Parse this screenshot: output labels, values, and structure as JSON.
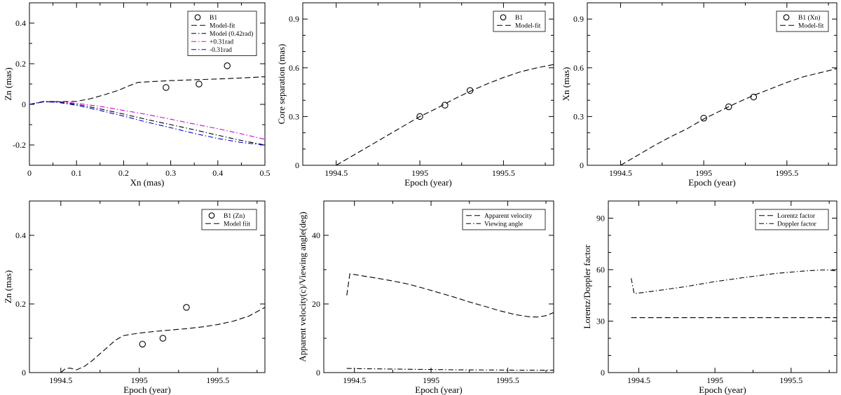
{
  "chart_data": [
    {
      "id": "p1",
      "type": "line",
      "xlabel": "Xn (mas)",
      "ylabel": "Zn (mas)",
      "xlim": [
        0,
        0.5
      ],
      "ylim": [
        -0.3,
        0.5
      ],
      "xticks": [
        0,
        0.1,
        0.2,
        0.3,
        0.4,
        0.5
      ],
      "xtick_labels": [
        "0",
        "0.1",
        "0.2",
        "0.3",
        "0.4",
        "0.5"
      ],
      "yticks": [
        -0.2,
        0,
        0.2,
        0.4
      ],
      "ytick_labels": [
        "-0.2",
        "0",
        "0.2",
        "0.4"
      ],
      "x_minor": 2,
      "y_minor": 2,
      "legend_position": "top-right",
      "series": [
        {
          "name": "B1",
          "kind": "marker",
          "color": "#000000",
          "x": [
            0.29,
            0.36,
            0.42
          ],
          "y": [
            0.083,
            0.1,
            0.19
          ]
        },
        {
          "name": "Model-fit",
          "kind": "line",
          "dash": "dash",
          "color": "#000000",
          "x": [
            0,
            0.03,
            0.06,
            0.1,
            0.13,
            0.16,
            0.19,
            0.21,
            0.23,
            0.26,
            0.3,
            0.35,
            0.4,
            0.45,
            0.5
          ],
          "y": [
            0,
            0.012,
            0.013,
            0.015,
            0.028,
            0.048,
            0.07,
            0.09,
            0.108,
            0.112,
            0.117,
            0.121,
            0.125,
            0.13,
            0.136
          ]
        },
        {
          "name": "Model (0.42rad)",
          "kind": "line",
          "dash": "dashdot",
          "color": "#000000",
          "x": [
            0,
            0.03,
            0.06,
            0.1,
            0.15,
            0.2,
            0.25,
            0.3,
            0.35,
            0.4,
            0.45,
            0.5
          ],
          "y": [
            0,
            0.014,
            0.012,
            0.0,
            -0.022,
            -0.048,
            -0.075,
            -0.1,
            -0.125,
            -0.152,
            -0.178,
            -0.2
          ]
        },
        {
          "name": "+0.31rad",
          "kind": "line",
          "dash": "dashdot",
          "color": "#d400d4",
          "x": [
            0,
            0.03,
            0.06,
            0.1,
            0.15,
            0.2,
            0.25,
            0.3,
            0.35,
            0.4,
            0.45,
            0.5
          ],
          "y": [
            0,
            0.015,
            0.015,
            0.005,
            -0.01,
            -0.03,
            -0.05,
            -0.073,
            -0.097,
            -0.12,
            -0.145,
            -0.172
          ]
        },
        {
          "name": "-0.31rad",
          "kind": "line",
          "dash": "dashdot",
          "color": "#0000cc",
          "x": [
            0,
            0.03,
            0.06,
            0.1,
            0.15,
            0.2,
            0.25,
            0.3,
            0.35,
            0.4,
            0.45,
            0.5
          ],
          "y": [
            0,
            0.013,
            0.01,
            -0.005,
            -0.03,
            -0.058,
            -0.088,
            -0.115,
            -0.143,
            -0.168,
            -0.188,
            -0.2
          ]
        }
      ]
    },
    {
      "id": "p2",
      "type": "line",
      "xlabel": "Epoch (year)",
      "ylabel": "Core separation (mas)",
      "xlim": [
        1994.3,
        1995.8
      ],
      "ylim": [
        0,
        1.0
      ],
      "xticks": [
        1994.5,
        1995,
        1995.5
      ],
      "xtick_labels": [
        "1994.5",
        "1995",
        "1995.5"
      ],
      "yticks": [
        0,
        0.3,
        0.6,
        0.9
      ],
      "ytick_labels": [
        "0",
        "0.3",
        "0.6",
        "0.9"
      ],
      "x_minor": 2,
      "y_minor": 3,
      "legend_position": "top-right",
      "series": [
        {
          "name": "B1",
          "kind": "marker",
          "color": "#000000",
          "x": [
            1995.0,
            1995.15,
            1995.3
          ],
          "y": [
            0.3,
            0.37,
            0.46
          ]
        },
        {
          "name": "Model-fit",
          "kind": "line",
          "dash": "dash",
          "color": "#000000",
          "x": [
            1994.5,
            1994.6,
            1994.7,
            1994.8,
            1994.9,
            1995.0,
            1995.1,
            1995.2,
            1995.3,
            1995.4,
            1995.5,
            1995.6,
            1995.7,
            1995.8
          ],
          "y": [
            0.0,
            0.06,
            0.12,
            0.18,
            0.24,
            0.3,
            0.35,
            0.405,
            0.455,
            0.5,
            0.54,
            0.575,
            0.6,
            0.62
          ]
        }
      ]
    },
    {
      "id": "p3",
      "type": "line",
      "xlabel": "Epoch (year)",
      "ylabel": "Xn (mas)",
      "xlim": [
        1994.3,
        1995.8
      ],
      "ylim": [
        0,
        1.0
      ],
      "xticks": [
        1994.5,
        1995,
        1995.5
      ],
      "xtick_labels": [
        "1994.5",
        "1995",
        "1995.5"
      ],
      "yticks": [
        0,
        0.3,
        0.6,
        0.9
      ],
      "ytick_labels": [
        "0",
        "0.3",
        "0.6",
        "0.9"
      ],
      "x_minor": 2,
      "y_minor": 3,
      "legend_position": "top-right",
      "series": [
        {
          "name": "B1 (Xn)",
          "kind": "marker",
          "color": "#000000",
          "x": [
            1995.0,
            1995.15,
            1995.3
          ],
          "y": [
            0.29,
            0.36,
            0.42
          ]
        },
        {
          "name": "Model-fit",
          "kind": "line",
          "dash": "dash",
          "color": "#000000",
          "x": [
            1994.5,
            1994.6,
            1994.7,
            1994.8,
            1994.9,
            1995.0,
            1995.1,
            1995.2,
            1995.3,
            1995.4,
            1995.5,
            1995.6,
            1995.7,
            1995.8
          ],
          "y": [
            0.0,
            0.06,
            0.12,
            0.175,
            0.225,
            0.285,
            0.335,
            0.385,
            0.43,
            0.47,
            0.51,
            0.545,
            0.57,
            0.595
          ]
        }
      ]
    },
    {
      "id": "p4",
      "type": "line",
      "xlabel": "Epoch (year)",
      "ylabel": "Zn (mas)",
      "xlim": [
        1994.3,
        1995.8
      ],
      "ylim": [
        0,
        0.5
      ],
      "xticks": [
        1994.5,
        1995,
        1995.5
      ],
      "xtick_labels": [
        "1994.5",
        "1995",
        "1995.5"
      ],
      "yticks": [
        0,
        0.2,
        0.4
      ],
      "ytick_labels": [
        "0",
        "0.2",
        "0.4"
      ],
      "x_minor": 2,
      "y_minor": 2,
      "legend_position": "top-right",
      "series": [
        {
          "name": "B1 (Zn)",
          "kind": "marker",
          "color": "#000000",
          "x": [
            1995.02,
            1995.15,
            1995.3
          ],
          "y": [
            0.083,
            0.1,
            0.19
          ]
        },
        {
          "name": "Model fiit",
          "kind": "line",
          "dash": "dash",
          "color": "#000000",
          "x": [
            1994.5,
            1994.53,
            1994.56,
            1994.6,
            1994.65,
            1994.7,
            1994.75,
            1994.8,
            1994.85,
            1994.9,
            1995.0,
            1995.1,
            1995.2,
            1995.3,
            1995.4,
            1995.5,
            1995.6,
            1995.7,
            1995.8
          ],
          "y": [
            0.0,
            0.012,
            0.013,
            0.008,
            0.018,
            0.035,
            0.055,
            0.075,
            0.095,
            0.108,
            0.115,
            0.12,
            0.124,
            0.128,
            0.133,
            0.14,
            0.15,
            0.165,
            0.19
          ]
        }
      ]
    },
    {
      "id": "p5",
      "type": "line",
      "xlabel": "Epoch (year)",
      "ylabel": "Apparent velocity(c)/Viewing angle(deg)",
      "xlim": [
        1994.3,
        1995.8
      ],
      "ylim": [
        0,
        50
      ],
      "xticks": [
        1994.5,
        1995,
        1995.5
      ],
      "xtick_labels": [
        "1994.5",
        "1995",
        "1995.5"
      ],
      "yticks": [
        0,
        20,
        40
      ],
      "ytick_labels": [
        "0",
        "20",
        "40"
      ],
      "x_minor": 2,
      "y_minor": 2,
      "legend_position": "top-right",
      "series": [
        {
          "name": "Apparent velocity",
          "kind": "line",
          "dash": "dash",
          "color": "#000000",
          "x": [
            1994.45,
            1994.47,
            1994.55,
            1994.65,
            1994.75,
            1994.85,
            1994.95,
            1995.05,
            1995.15,
            1995.25,
            1995.35,
            1995.45,
            1995.55,
            1995.65,
            1995.7,
            1995.75,
            1995.8
          ],
          "y": [
            22.5,
            28.8,
            28.2,
            27.5,
            26.7,
            25.8,
            24.6,
            23.3,
            22.0,
            20.6,
            19.3,
            18.0,
            16.9,
            16.2,
            16.2,
            16.6,
            17.5
          ]
        },
        {
          "name": "Viewing angle",
          "kind": "line",
          "dash": "dashdot",
          "color": "#000000",
          "x": [
            1994.45,
            1994.6,
            1994.8,
            1995.0,
            1995.2,
            1995.4,
            1995.6,
            1995.8
          ],
          "y": [
            1.2,
            1.1,
            1.0,
            0.9,
            0.8,
            0.75,
            0.7,
            0.7
          ]
        }
      ]
    },
    {
      "id": "p6",
      "type": "line",
      "xlabel": "Epoch (year)",
      "ylabel": "Lorentz/Doppler factor",
      "xlim": [
        1994.3,
        1995.8
      ],
      "ylim": [
        0,
        100
      ],
      "xticks": [
        1994.5,
        1995,
        1995.5
      ],
      "xtick_labels": [
        "1994.5",
        "1995",
        "1995.5"
      ],
      "yticks": [
        0,
        30,
        60,
        90
      ],
      "ytick_labels": [
        "0",
        "30",
        "60",
        "90"
      ],
      "x_minor": 2,
      "y_minor": 3,
      "legend_position": "top-right",
      "series": [
        {
          "name": "Lorentz factor",
          "kind": "line",
          "dash": "dash",
          "color": "#000000",
          "x": [
            1994.45,
            1995.8
          ],
          "y": [
            32,
            32
          ]
        },
        {
          "name": "Doppler factor",
          "kind": "line",
          "dash": "dashdot",
          "color": "#000000",
          "x": [
            1994.45,
            1994.47,
            1994.6,
            1994.8,
            1995.0,
            1995.2,
            1995.4,
            1995.6,
            1995.7,
            1995.75,
            1995.8
          ],
          "y": [
            55,
            46,
            47.5,
            50,
            53,
            55.5,
            57.8,
            59.3,
            59.8,
            59.8,
            59.2
          ]
        }
      ]
    }
  ]
}
